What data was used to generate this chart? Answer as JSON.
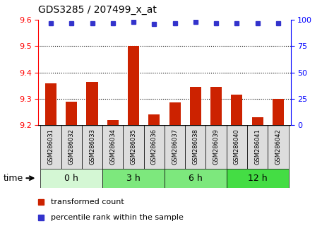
{
  "title": "GDS3285 / 207499_x_at",
  "samples": [
    "GSM286031",
    "GSM286032",
    "GSM286033",
    "GSM286034",
    "GSM286035",
    "GSM286036",
    "GSM286037",
    "GSM286038",
    "GSM286039",
    "GSM286040",
    "GSM286041",
    "GSM286042"
  ],
  "red_values": [
    9.36,
    9.29,
    9.365,
    9.22,
    9.5,
    9.24,
    9.285,
    9.345,
    9.345,
    9.315,
    9.23,
    9.3
  ],
  "blue_values": [
    97,
    97,
    97,
    97,
    98,
    96,
    97,
    98,
    97,
    97,
    97,
    97
  ],
  "group_labels": [
    "0 h",
    "3 h",
    "6 h",
    "12 h"
  ],
  "group_starts": [
    0,
    3,
    6,
    9
  ],
  "group_ends": [
    3,
    6,
    9,
    12
  ],
  "group_colors": [
    "#d4f7d4",
    "#7de87d",
    "#7de87d",
    "#44dd44"
  ],
  "ylim_left": [
    9.2,
    9.6
  ],
  "ylim_right": [
    0,
    100
  ],
  "yticks_left": [
    9.2,
    9.3,
    9.4,
    9.5,
    9.6
  ],
  "yticks_right": [
    0,
    25,
    50,
    75,
    100
  ],
  "bar_color": "#cc2200",
  "dot_color": "#3333cc",
  "label_red": "transformed count",
  "label_blue": "percentile rank within the sample",
  "title_fontsize": 10,
  "tick_fontsize": 8,
  "sample_fontsize": 6,
  "legend_fontsize": 8,
  "group_fontsize": 9
}
